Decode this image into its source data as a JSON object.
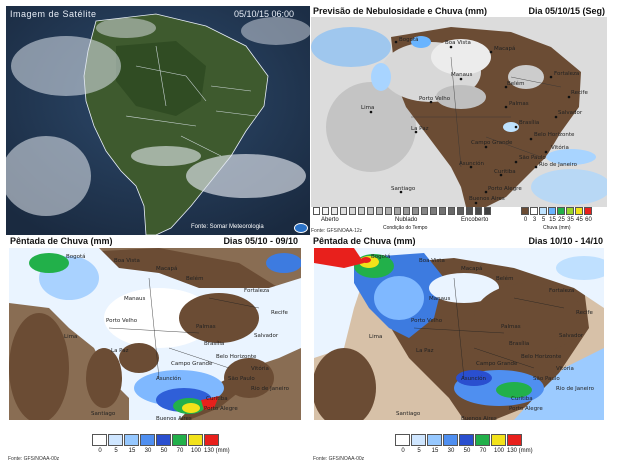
{
  "satellite": {
    "title": "Imagem de Satélite",
    "datetime": "05/10/15 06:00",
    "credit": "Fonte: Somar Meteorologia"
  },
  "clouds": {
    "title": "Previsão de Nebulosidade e Chuva (mm)",
    "date": "Dia 05/10/15 (Seg)",
    "source": "Fonte: GFS/NOAA-12z",
    "cloud_legend": {
      "left": "Aberto",
      "mid": "Nublado",
      "right": "Encoberto",
      "caption": "Condição do Tempo"
    },
    "rain_legend": {
      "ticks": [
        "0",
        "3",
        "5",
        "15",
        "25",
        "35",
        "45",
        "60"
      ],
      "caption": "Chuva (mm)"
    },
    "cities": [
      "Bogotá",
      "Boa Vista",
      "Macapá",
      "Belém",
      "Manaus",
      "Fortaleza",
      "Recife",
      "Porto Velho",
      "Palmas",
      "Salvador",
      "Lima",
      "Brasília",
      "La Paz",
      "Belo Horizonte",
      "Campo Grande",
      "Vitória",
      "Asunción",
      "São Paulo",
      "Rio de Janeiro",
      "Curitiba",
      "Porto Alegre",
      "Santiago",
      "Buenos Aires"
    ]
  },
  "pentada1": {
    "title": "Pêntada de Chuva (mm)",
    "dates": "Dias 05/10 - 09/10",
    "source": "Fonte: GFS/NOAA-00z",
    "legend_ticks": [
      "0",
      "5",
      "15",
      "30",
      "50",
      "70",
      "100",
      "130 (mm)"
    ],
    "cities": [
      "Bogotá",
      "Boa Vista",
      "Macapá",
      "Belém",
      "Manaus",
      "Fortaleza",
      "Recife",
      "Porto Velho",
      "Palmas",
      "Salvador",
      "Lima",
      "Brasília",
      "La Paz",
      "Belo Horizonte",
      "Campo Grande",
      "Vitória",
      "Asunción",
      "São Paulo",
      "Rio de Janeiro",
      "Curitiba",
      "Porto Alegre",
      "Santiago",
      "Buenos Aires"
    ]
  },
  "pentada2": {
    "title": "Pêntada de Chuva (mm)",
    "dates": "Dias 10/10 - 14/10",
    "source": "Fonte: GFS/NOAA-00z",
    "legend_ticks": [
      "0",
      "5",
      "15",
      "30",
      "50",
      "70",
      "100",
      "130 (mm)"
    ],
    "cities": [
      "Bogotá",
      "Boa Vista",
      "Macapá",
      "Belém",
      "Manaus",
      "Fortaleza",
      "Recife",
      "Porto Velho",
      "Palmas",
      "Salvador",
      "Lima",
      "Brasília",
      "La Paz",
      "Belo Horizonte",
      "Campo Grande",
      "Vitória",
      "Asunción",
      "São Paulo",
      "Rio de Janeiro",
      "Curitiba",
      "Porto Alegre",
      "Santiago",
      "Buenos Aires"
    ]
  },
  "colors": {
    "land": "#6b4c34",
    "ocean_clouds": "#d9d9d9",
    "rain_scale": [
      "#ffffff",
      "#cfe6ff",
      "#96c8ff",
      "#4f8ff0",
      "#2a4fcf",
      "#22b04a",
      "#f2e21a",
      "#e8201c"
    ]
  }
}
